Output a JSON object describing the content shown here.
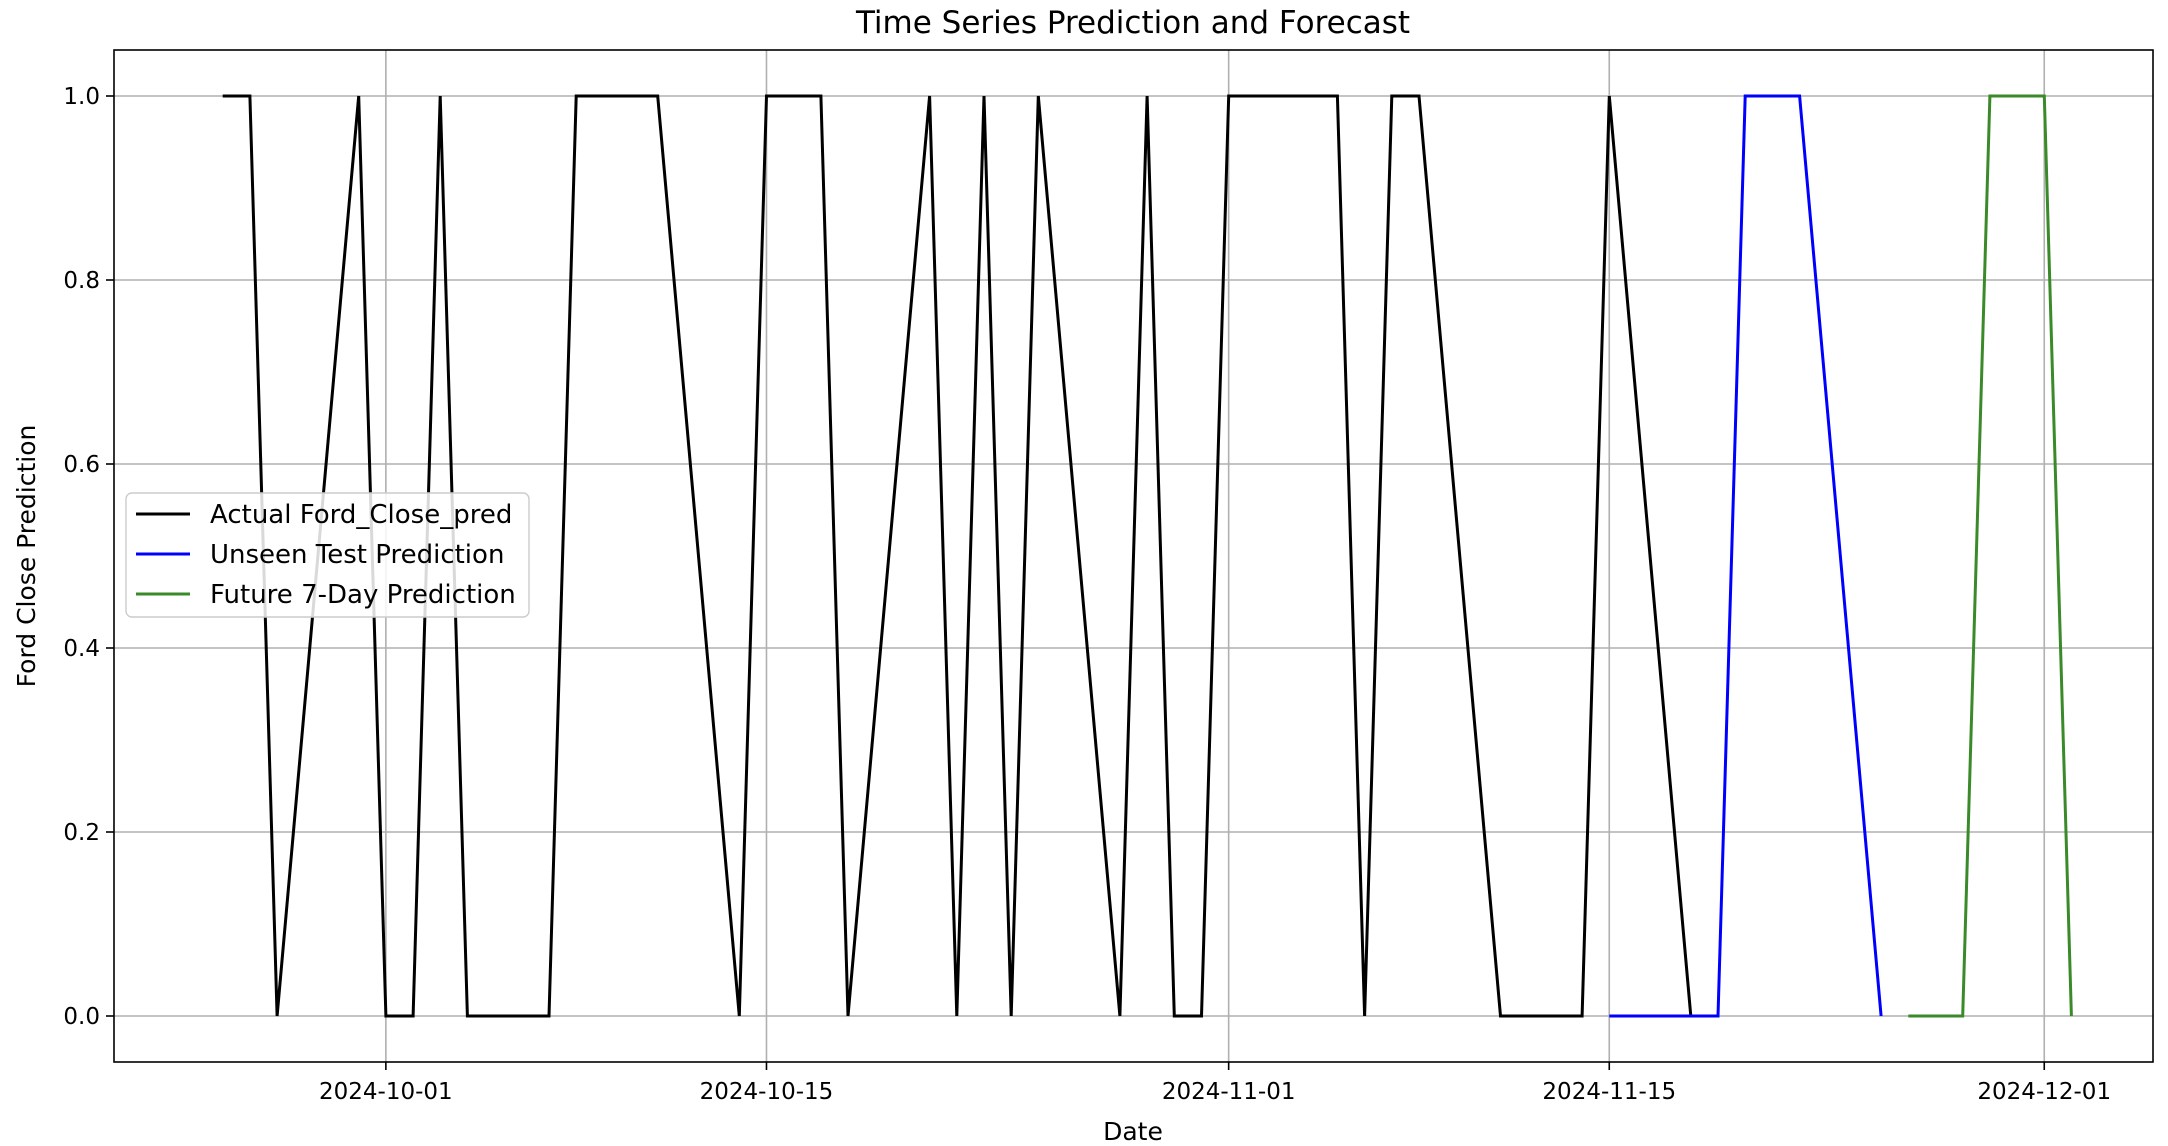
{
  "chart_data": {
    "type": "line",
    "title": "Time Series Prediction and Forecast",
    "xlabel": "Date",
    "ylabel": "Ford Close Prediction",
    "xlim": [
      "2024-09-21",
      "2024-12-05"
    ],
    "ylim": [
      -0.05,
      1.05
    ],
    "x_ticks": [
      "2024-10-01",
      "2024-10-15",
      "2024-11-01",
      "2024-11-15",
      "2024-12-01"
    ],
    "y_ticks": [
      0.0,
      0.2,
      0.4,
      0.6,
      0.8,
      1.0
    ],
    "grid": true,
    "legend_position": "center-left",
    "series": [
      {
        "name": "Actual Ford_Close_pred",
        "color": "#000000",
        "points": [
          [
            "2024-09-25",
            1
          ],
          [
            "2024-09-26",
            1
          ],
          [
            "2024-09-27",
            0
          ],
          [
            "2024-09-30",
            1
          ],
          [
            "2024-10-01",
            0
          ],
          [
            "2024-10-02",
            0
          ],
          [
            "2024-10-03",
            1
          ],
          [
            "2024-10-04",
            0
          ],
          [
            "2024-10-07",
            0
          ],
          [
            "2024-10-08",
            1
          ],
          [
            "2024-10-09",
            1
          ],
          [
            "2024-10-10",
            1
          ],
          [
            "2024-10-11",
            1
          ],
          [
            "2024-10-14",
            0
          ],
          [
            "2024-10-15",
            1
          ],
          [
            "2024-10-16",
            1
          ],
          [
            "2024-10-17",
            1
          ],
          [
            "2024-10-18",
            0
          ],
          [
            "2024-10-21",
            1
          ],
          [
            "2024-10-22",
            0
          ],
          [
            "2024-10-23",
            1
          ],
          [
            "2024-10-24",
            0
          ],
          [
            "2024-10-25",
            1
          ],
          [
            "2024-10-28",
            0
          ],
          [
            "2024-10-29",
            1
          ],
          [
            "2024-10-30",
            0
          ],
          [
            "2024-10-31",
            0
          ],
          [
            "2024-11-01",
            1
          ],
          [
            "2024-11-04",
            1
          ],
          [
            "2024-11-05",
            1
          ],
          [
            "2024-11-06",
            0
          ],
          [
            "2024-11-07",
            1
          ],
          [
            "2024-11-08",
            1
          ],
          [
            "2024-11-11",
            0
          ],
          [
            "2024-11-12",
            0
          ],
          [
            "2024-11-13",
            0
          ],
          [
            "2024-11-14",
            0
          ],
          [
            "2024-11-15",
            1
          ],
          [
            "2024-11-18",
            0
          ]
        ]
      },
      {
        "name": "Unseen Test Prediction",
        "color": "#0000ff",
        "points": [
          [
            "2024-11-15",
            0
          ],
          [
            "2024-11-18",
            0
          ],
          [
            "2024-11-19",
            0
          ],
          [
            "2024-11-20",
            1
          ],
          [
            "2024-11-21",
            1
          ],
          [
            "2024-11-22",
            1
          ],
          [
            "2024-11-25",
            0
          ]
        ]
      },
      {
        "name": "Future 7-Day Prediction",
        "color": "#3a8a2a",
        "points": [
          [
            "2024-11-26",
            0
          ],
          [
            "2024-11-27",
            0
          ],
          [
            "2024-11-28",
            0
          ],
          [
            "2024-11-29",
            1
          ],
          [
            "2024-11-30",
            1
          ],
          [
            "2024-12-01",
            1
          ],
          [
            "2024-12-02",
            0
          ]
        ]
      }
    ]
  }
}
